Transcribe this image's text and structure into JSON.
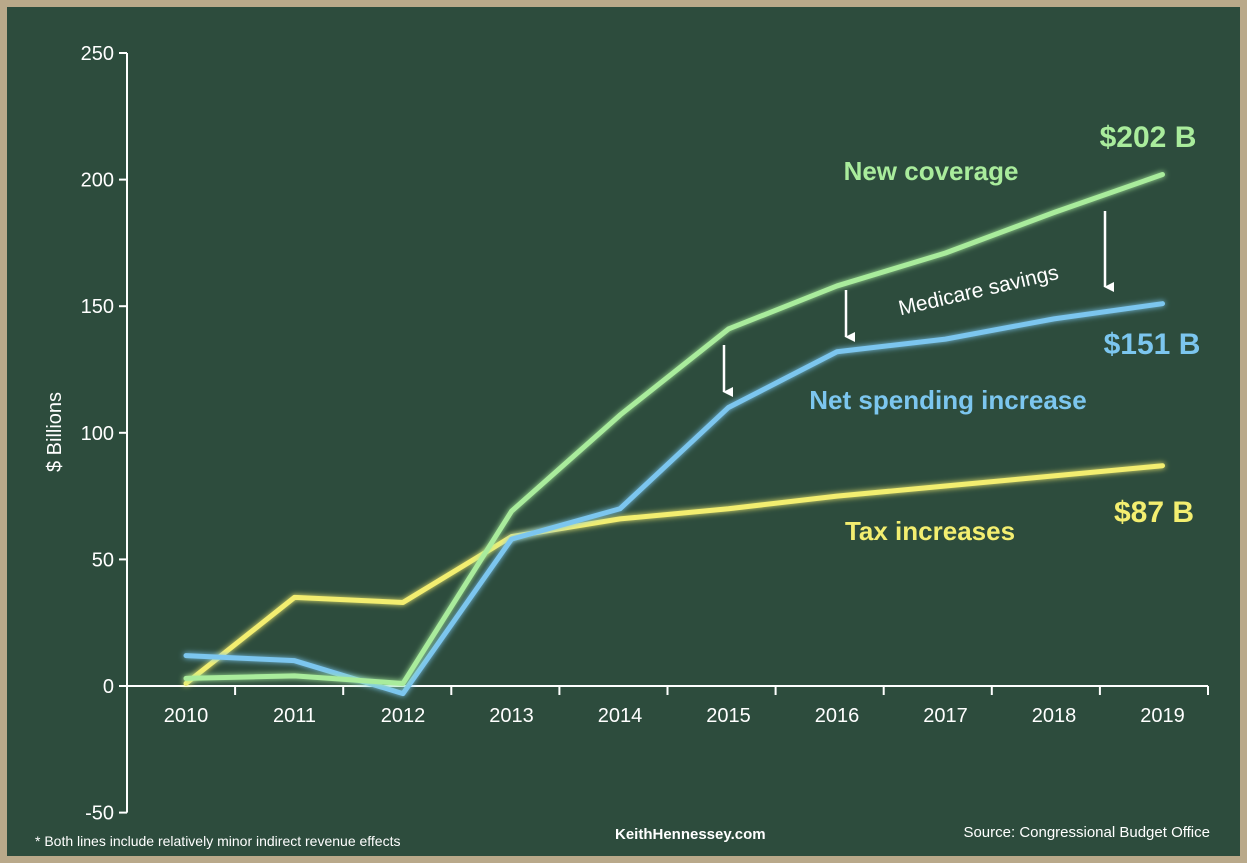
{
  "chart_data": {
    "type": "line",
    "x": [
      2010,
      2011,
      2012,
      2013,
      2014,
      2015,
      2016,
      2017,
      2018,
      2019
    ],
    "ylabel": "$ Billions",
    "ylim": [
      -50,
      250
    ],
    "yticks": [
      -50,
      0,
      50,
      100,
      150,
      200,
      250
    ],
    "grid": false,
    "series": [
      {
        "name": "New coverage",
        "color": "#a9ec9c",
        "values": [
          3,
          4,
          1,
          69,
          107,
          141,
          158,
          171,
          187,
          202
        ],
        "end_label": "$202 B"
      },
      {
        "name": "Net spending increase",
        "color": "#7cc6ef",
        "values": [
          12,
          10,
          -3,
          58,
          70,
          110,
          132,
          137,
          145,
          151
        ],
        "end_label": "$151 B"
      },
      {
        "name": "Tax increases",
        "color": "#f3ee70",
        "values": [
          1,
          35,
          33,
          59,
          66,
          70,
          75,
          79,
          83,
          87
        ],
        "end_label": "$87 B"
      }
    ],
    "annotations": {
      "medicare_savings": "Medicare savings"
    }
  },
  "footer": {
    "footnote": "* Both lines include relatively minor indirect revenue effects",
    "credit": "KeithHennessey.com",
    "source": "Source: Congressional Budget Office"
  }
}
